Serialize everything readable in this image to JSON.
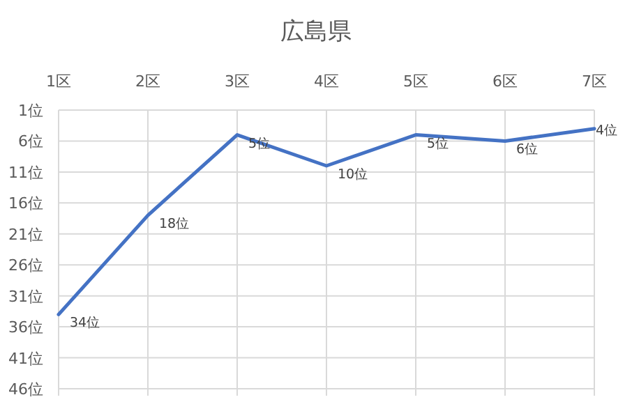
{
  "chart_data": {
    "type": "line",
    "title": "広島県",
    "categories": [
      "1区",
      "2区",
      "3区",
      "4区",
      "5区",
      "6区",
      "7区"
    ],
    "series": [
      {
        "color": "#4472c4",
        "values": [
          34,
          18,
          5,
          10,
          5,
          6,
          4
        ],
        "value_labels": [
          "34位",
          "18位",
          "5位",
          "10位",
          "5位",
          "6位",
          "4位"
        ]
      }
    ],
    "ylim": [
      46,
      1
    ],
    "yticks": [
      {
        "value": 1,
        "label": "1位"
      },
      {
        "value": 6,
        "label": "6位"
      },
      {
        "value": 11,
        "label": "11位"
      },
      {
        "value": 16,
        "label": "16位"
      },
      {
        "value": 21,
        "label": "21位"
      },
      {
        "value": 26,
        "label": "26位"
      },
      {
        "value": 31,
        "label": "31位"
      },
      {
        "value": 36,
        "label": "36位"
      },
      {
        "value": 41,
        "label": "41位"
      },
      {
        "value": 46,
        "label": "46位"
      }
    ],
    "grid": true,
    "marker": "none",
    "line_style": "solid"
  }
}
